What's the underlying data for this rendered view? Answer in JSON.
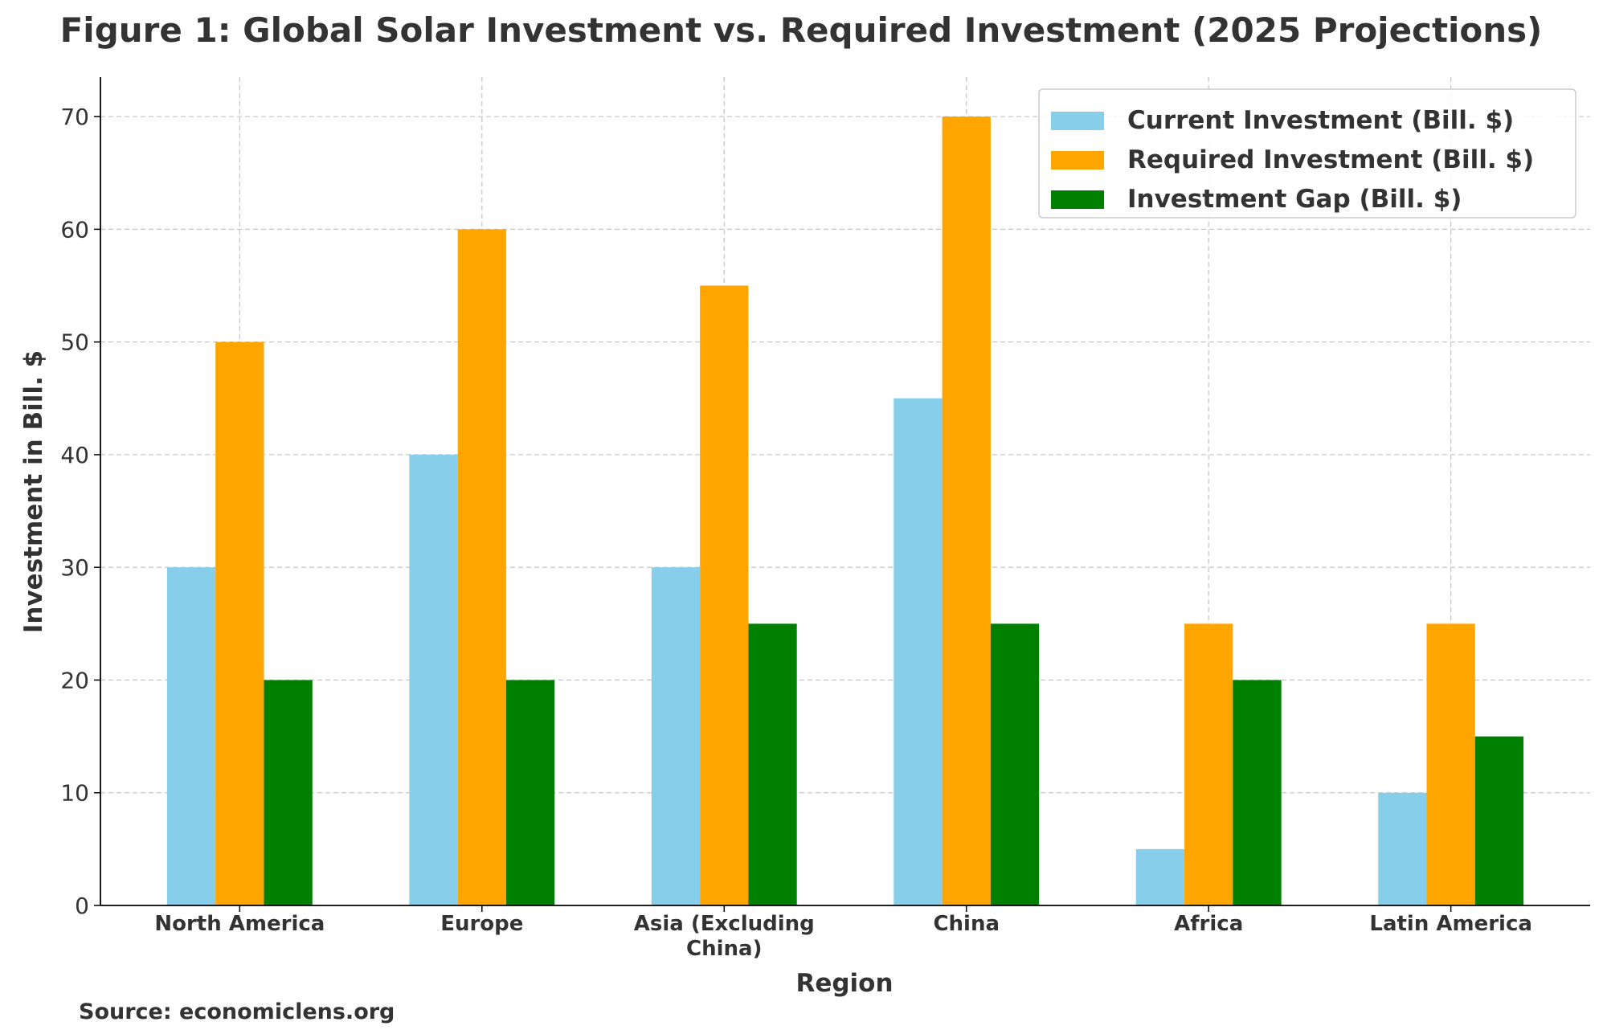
{
  "chart_data": {
    "type": "bar",
    "title": "Figure 1: Global Solar Investment vs. Required Investment (2025 Projections)",
    "xlabel": "Region",
    "ylabel": "Investment in Bill. $",
    "categories": [
      "North America",
      "Europe",
      "Asia (Excluding China)",
      "China",
      "Africa",
      "Latin America"
    ],
    "category_lines": [
      [
        "North America"
      ],
      [
        "Europe"
      ],
      [
        "Asia (Excluding",
        "China)"
      ],
      [
        "China"
      ],
      [
        "Africa"
      ],
      [
        "Latin America"
      ]
    ],
    "series": [
      {
        "name": "Current Investment (Bill. $)",
        "color": "#87CEEB",
        "values": [
          30,
          40,
          30,
          45,
          5,
          10
        ]
      },
      {
        "name": "Required Investment (Bill. $)",
        "color": "#FFA500",
        "values": [
          50,
          60,
          55,
          70,
          25,
          25
        ]
      },
      {
        "name": "Investment Gap (Bill. $)",
        "color": "#008000",
        "values": [
          20,
          20,
          25,
          25,
          20,
          15
        ]
      }
    ],
    "ylim": [
      0,
      73.5
    ],
    "yticks": [
      0,
      10,
      20,
      30,
      40,
      50,
      60,
      70
    ],
    "grid": true,
    "legend_placement": "top-right",
    "source": "Source: economiclens.org"
  }
}
